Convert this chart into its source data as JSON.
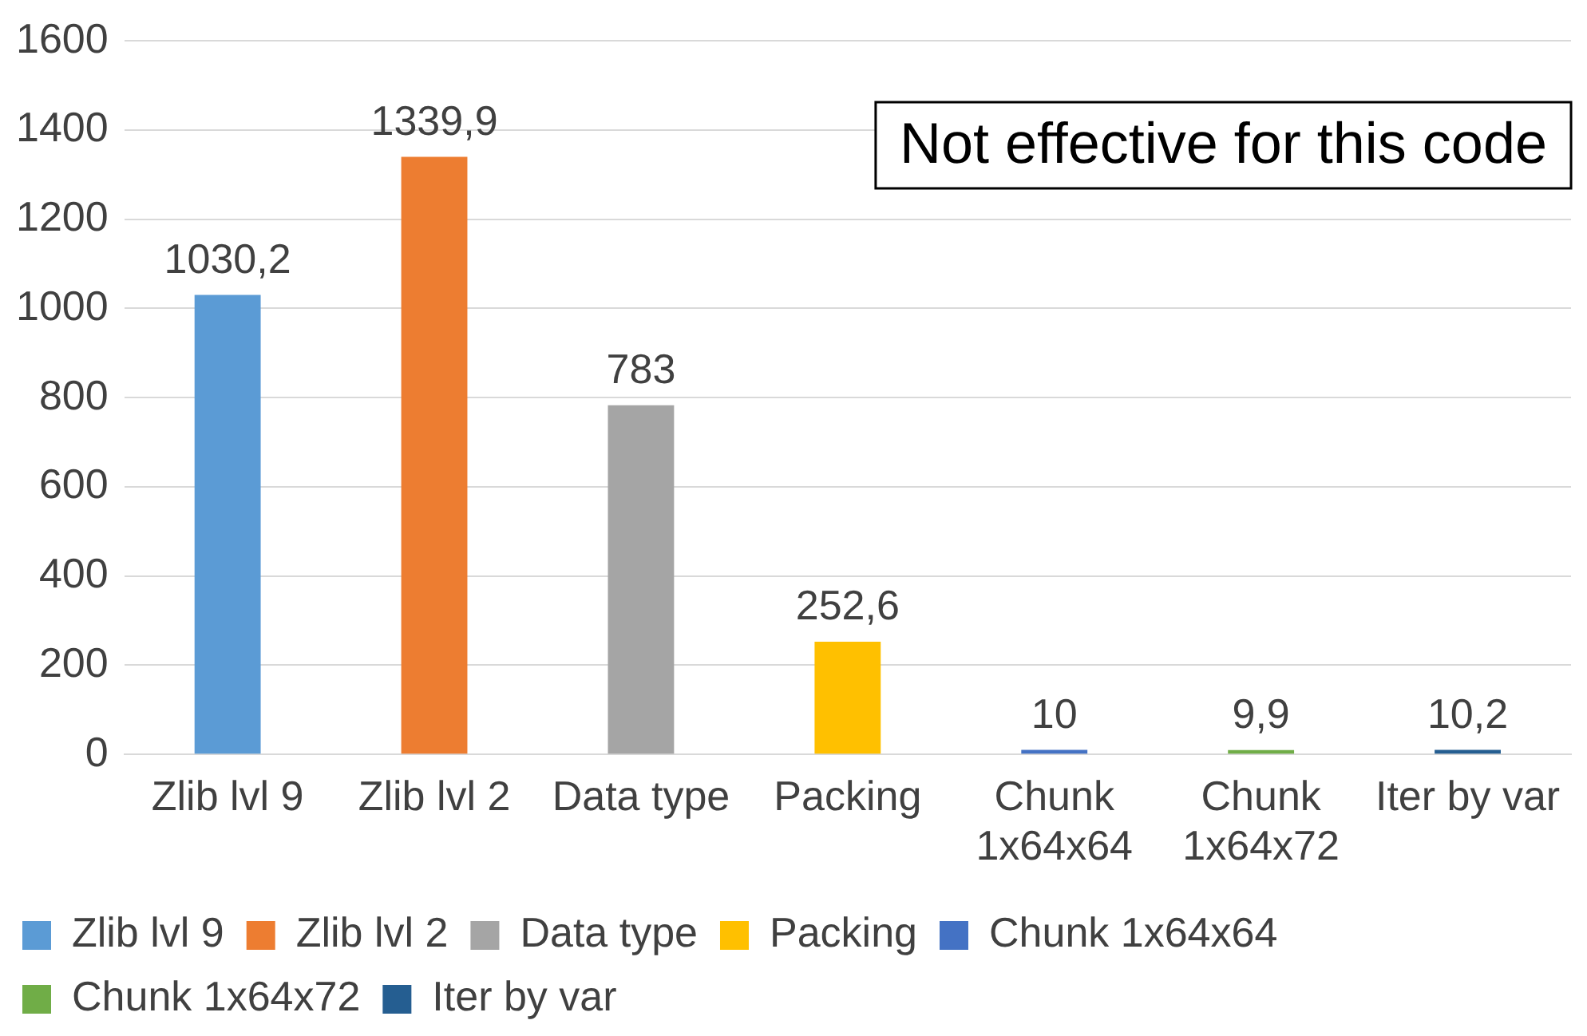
{
  "chart_data": {
    "type": "bar",
    "categories": [
      "Zlib lvl 9",
      "Zlib lvl 2",
      "Data type",
      "Packing",
      "Chunk 1x64x64",
      "Chunk 1x64x72",
      "Iter by var"
    ],
    "series": [
      {
        "name": "Zlib lvl 9",
        "color": "#5b9bd5",
        "values": [
          1030.2,
          null,
          null,
          null,
          null,
          null,
          null
        ],
        "value_labels": [
          "1030,2",
          null,
          null,
          null,
          null,
          null,
          null
        ]
      },
      {
        "name": "Zlib lvl 2",
        "color": "#ed7d31",
        "values": [
          null,
          1339.9,
          null,
          null,
          null,
          null,
          null
        ],
        "value_labels": [
          null,
          "1339,9",
          null,
          null,
          null,
          null,
          null
        ]
      },
      {
        "name": "Data type",
        "color": "#a5a5a5",
        "values": [
          null,
          null,
          783,
          null,
          null,
          null,
          null
        ],
        "value_labels": [
          null,
          null,
          "783",
          null,
          null,
          null,
          null
        ]
      },
      {
        "name": "Packing",
        "color": "#ffc000",
        "values": [
          null,
          null,
          null,
          252.6,
          null,
          null,
          null
        ],
        "value_labels": [
          null,
          null,
          null,
          "252,6",
          null,
          null,
          null
        ]
      },
      {
        "name": "Chunk 1x64x64",
        "color": "#4472c4",
        "values": [
          null,
          null,
          null,
          null,
          10,
          null,
          null
        ],
        "value_labels": [
          null,
          null,
          null,
          null,
          "10",
          null,
          null
        ]
      },
      {
        "name": "Chunk 1x64x72",
        "color": "#70ad47",
        "values": [
          null,
          null,
          null,
          null,
          null,
          9.9,
          null
        ],
        "value_labels": [
          null,
          null,
          null,
          null,
          null,
          "9,9",
          null
        ]
      },
      {
        "name": "Iter by var",
        "color": "#255e91",
        "values": [
          null,
          null,
          null,
          null,
          null,
          null,
          10.2
        ],
        "value_labels": [
          null,
          null,
          null,
          null,
          null,
          null,
          "10,2"
        ]
      }
    ],
    "ylim": [
      0,
      1600
    ],
    "yticks": [
      0,
      200,
      400,
      600,
      800,
      1000,
      1200,
      1400,
      1600
    ],
    "grid": "y",
    "legend": "bottom",
    "annotations": [
      "Not effective for this code"
    ]
  }
}
